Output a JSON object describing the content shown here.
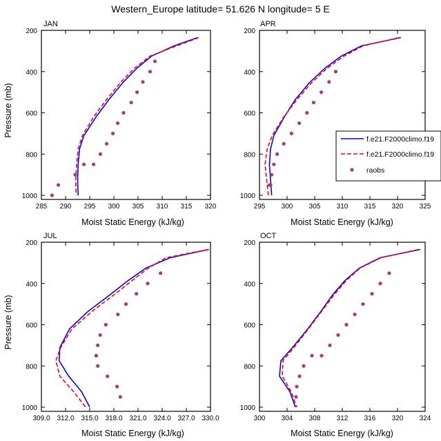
{
  "title": "Western_Europe  latitude= 51.626 N longitude= 5 E",
  "legend": {
    "entries": [
      {
        "label": "f.e21.F2000climo.f19",
        "color": "#0000ff",
        "style": "solid"
      },
      {
        "label": "f.e21.F2000climo.f19",
        "color": "#ff0000",
        "style": "dashed"
      },
      {
        "label": "raobs",
        "color": "#b03a66",
        "style": "marker"
      }
    ]
  },
  "chart_data": [
    {
      "type": "line",
      "panel": "JAN",
      "title": "JAN",
      "xlabel": "Moist Static Energy (kJ/kg)",
      "ylabel": "Pressure (mb)",
      "xlim": [
        285,
        320
      ],
      "ylim": [
        1020,
        200
      ],
      "xticks": [
        285,
        290,
        295,
        300,
        305,
        310,
        315,
        320
      ],
      "xtick_labels": [
        "285",
        "290",
        "295",
        "300",
        "305",
        "310",
        "315",
        "320"
      ],
      "yticks": [
        200,
        400,
        600,
        800,
        1000
      ],
      "ytick_labels": [
        "200",
        "400",
        "600",
        "800",
        "1000"
      ],
      "series": [
        {
          "name": "f.e21.F2000climo.f19",
          "color": "#0000ff",
          "style": "solid",
          "x": [
            317.3,
            312.5,
            307.8,
            304.7,
            301.8,
            299.0,
            296.3,
            293.8,
            292.9,
            292.6,
            292.5,
            292.6
          ],
          "y": [
            235,
            275,
            325,
            385,
            455,
            535,
            620,
            710,
            775,
            850,
            925,
            1000
          ]
        },
        {
          "name": "f.e21.F2000climo.f19",
          "color": "#ff0000",
          "style": "dashed",
          "x": [
            317.6,
            313.0,
            307.5,
            304.2,
            301.3,
            298.5,
            295.8,
            293.5,
            292.6,
            292.3,
            292.1,
            292.2
          ],
          "y": [
            235,
            275,
            325,
            385,
            455,
            535,
            620,
            710,
            775,
            850,
            925,
            1000
          ]
        },
        {
          "name": "raobs",
          "color": "#b03a66",
          "style": "marker",
          "x": [
            308.5,
            307.5,
            306.0,
            304.8,
            303.6,
            302.0,
            300.8,
            299.8,
            298.5,
            297.2,
            295.8,
            293.8,
            292.0,
            288.5,
            287.2
          ],
          "y": [
            350,
            400,
            450,
            500,
            550,
            600,
            650,
            700,
            750,
            800,
            850,
            850,
            900,
            950,
            1000
          ]
        }
      ]
    },
    {
      "type": "line",
      "panel": "APR",
      "title": "APR",
      "xlabel": "Moist Static Energy (kJ/kg)",
      "ylabel": "",
      "xlim": [
        295,
        325
      ],
      "ylim": [
        1020,
        200
      ],
      "xticks": [
        295,
        300,
        305,
        310,
        315,
        320,
        325
      ],
      "xtick_labels": [
        "295",
        "300",
        "305",
        "310",
        "315",
        "320",
        "325"
      ],
      "yticks": [
        200,
        400,
        600,
        800,
        1000
      ],
      "ytick_labels": [
        "200",
        "400",
        "600",
        "800",
        "1000"
      ],
      "series": [
        {
          "name": "f.e21.F2000climo.f19",
          "color": "#0000ff",
          "style": "solid",
          "x": [
            320.6,
            313.5,
            309.8,
            306.8,
            304.0,
            301.5,
            299.5,
            297.6,
            297.0,
            296.8,
            297.0,
            297.2
          ],
          "y": [
            235,
            275,
            325,
            385,
            455,
            535,
            620,
            710,
            775,
            850,
            925,
            1000
          ]
        },
        {
          "name": "f.e21.F2000climo.f19",
          "color": "#ff0000",
          "style": "dashed",
          "x": [
            320.3,
            313.8,
            310.3,
            307.2,
            304.4,
            301.8,
            299.4,
            297.3,
            296.4,
            296.0,
            296.3,
            296.6
          ],
          "y": [
            235,
            275,
            325,
            385,
            455,
            535,
            620,
            710,
            775,
            850,
            925,
            1000
          ]
        },
        {
          "name": "raobs",
          "color": "#b03a66",
          "style": "marker",
          "x": [
            308.8,
            307.6,
            306.2,
            304.8,
            303.6,
            302.2,
            300.8,
            299.4,
            298.2,
            297.6,
            297.2,
            296.8,
            297.0
          ],
          "y": [
            400,
            450,
            500,
            550,
            600,
            650,
            700,
            750,
            800,
            850,
            900,
            950,
            950
          ]
        }
      ]
    },
    {
      "type": "line",
      "panel": "JUL",
      "title": "JUL",
      "xlabel": "Moist Static Energy (kJ/kg)",
      "ylabel": "Pressure (mb)",
      "xlim": [
        309,
        330
      ],
      "ylim": [
        1020,
        200
      ],
      "xticks": [
        309,
        312,
        315,
        318,
        321,
        324,
        327,
        330
      ],
      "xtick_labels": [
        "309.0",
        "312.0",
        "315.0",
        "318.0",
        "321.0",
        "324.0",
        "327.0",
        "330.0"
      ],
      "yticks": [
        200,
        400,
        600,
        800,
        1000
      ],
      "ytick_labels": [
        "200",
        "400",
        "600",
        "800",
        "1000"
      ],
      "series": [
        {
          "name": "f.e21.F2000climo.f19",
          "color": "#0000ff",
          "style": "solid",
          "x": [
            329.8,
            325.0,
            322.0,
            319.8,
            317.5,
            314.8,
            312.5,
            311.3,
            311.2,
            312.4,
            314.0,
            315.0
          ],
          "y": [
            235,
            275,
            325,
            385,
            455,
            535,
            620,
            710,
            775,
            850,
            925,
            1000
          ]
        },
        {
          "name": "f.e21.F2000climo.f19",
          "color": "#ff0000",
          "style": "dashed",
          "x": [
            329.7,
            324.5,
            322.3,
            320.3,
            318.0,
            315.3,
            312.8,
            311.4,
            310.8,
            311.3,
            313.0,
            314.5
          ],
          "y": [
            235,
            275,
            325,
            385,
            455,
            535,
            620,
            710,
            775,
            850,
            925,
            1000
          ]
        },
        {
          "name": "raobs",
          "color": "#b03a66",
          "style": "marker",
          "x": [
            323.8,
            322.2,
            320.8,
            319.5,
            318.5,
            317.0,
            316.3,
            316.0,
            315.8,
            315.8,
            316.0,
            317.2,
            318.4,
            318.8
          ],
          "y": [
            350,
            400,
            450,
            500,
            550,
            600,
            650,
            700,
            750,
            750,
            800,
            850,
            900,
            950
          ]
        }
      ]
    },
    {
      "type": "line",
      "panel": "OCT",
      "title": "OCT",
      "xlabel": "Moist Static Energy (kJ/kg)",
      "ylabel": "",
      "xlim": [
        300,
        324
      ],
      "ylim": [
        1020,
        200
      ],
      "xticks": [
        300,
        304,
        308,
        312,
        316,
        320,
        324
      ],
      "xtick_labels": [
        "300",
        "304",
        "308",
        "312",
        "316",
        "320",
        "324"
      ],
      "yticks": [
        200,
        400,
        600,
        800,
        1000
      ],
      "ytick_labels": [
        "200",
        "400",
        "600",
        "800",
        "1000"
      ],
      "series": [
        {
          "name": "f.e21.F2000climo.f19",
          "color": "#0000ff",
          "style": "solid",
          "x": [
            323.3,
            317.5,
            314.5,
            312.4,
            310.6,
            308.9,
            307.0,
            304.8,
            303.1,
            302.9,
            304.4,
            305.2
          ],
          "y": [
            235,
            275,
            325,
            385,
            455,
            535,
            620,
            710,
            775,
            850,
            925,
            1000
          ]
        },
        {
          "name": "f.e21.F2000climo.f19",
          "color": "#ff0000",
          "style": "dashed",
          "x": [
            323.0,
            317.6,
            314.6,
            312.6,
            310.8,
            309.0,
            307.1,
            305.0,
            303.4,
            303.3,
            304.6,
            305.4
          ],
          "y": [
            235,
            275,
            325,
            385,
            455,
            535,
            620,
            710,
            775,
            850,
            925,
            1000
          ]
        },
        {
          "name": "raobs",
          "color": "#b03a66",
          "style": "marker",
          "x": [
            318.8,
            317.5,
            316.3,
            315.0,
            313.8,
            312.6,
            311.4,
            310.2,
            309.0,
            307.6,
            306.4,
            305.8,
            305.4,
            305.3
          ],
          "y": [
            350,
            400,
            450,
            500,
            550,
            600,
            650,
            700,
            750,
            750,
            800,
            850,
            900,
            950
          ]
        }
      ]
    }
  ]
}
